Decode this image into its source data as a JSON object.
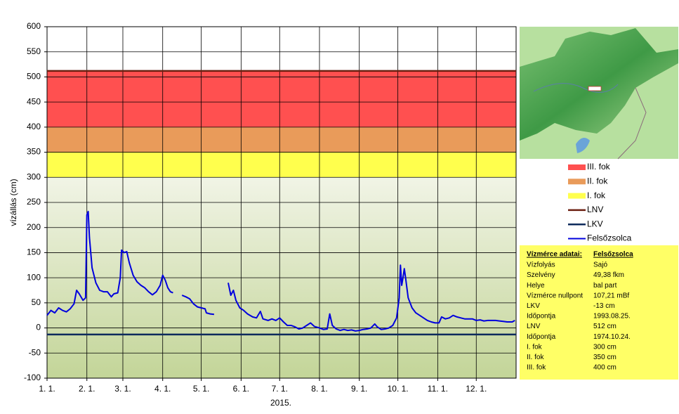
{
  "chart_data": {
    "type": "line",
    "y_label": "vízállás (cm)",
    "x_label": "2015.",
    "xlim": [
      0,
      365
    ],
    "xticks": [
      {
        "value": 0,
        "label": "1. 1."
      },
      {
        "value": 31,
        "label": "2. 1."
      },
      {
        "value": 59,
        "label": "3. 1."
      },
      {
        "value": 90,
        "label": "4. 1."
      },
      {
        "value": 120,
        "label": "5. 1."
      },
      {
        "value": 151,
        "label": "6. 1."
      },
      {
        "value": 181,
        "label": "7. 1."
      },
      {
        "value": 212,
        "label": "8. 1."
      },
      {
        "value": 243,
        "label": "9. 1."
      },
      {
        "value": 273,
        "label": "10. 1."
      },
      {
        "value": 304,
        "label": "11. 1."
      },
      {
        "value": 334,
        "label": "12. 1."
      }
    ],
    "ylim": [
      -100,
      600
    ],
    "yticks": [
      -100,
      -50,
      0,
      50,
      100,
      150,
      200,
      250,
      300,
      350,
      400,
      450,
      500,
      550,
      600
    ],
    "grid": true,
    "bands": [
      {
        "name": "III. fok",
        "range": [
          400,
          512
        ],
        "color": "#ff5050"
      },
      {
        "name": "II. fok",
        "range": [
          350,
          400
        ],
        "color": "#e99b5a"
      },
      {
        "name": "I. fok",
        "range": [
          300,
          350
        ],
        "color": "#ffff4d"
      }
    ],
    "levels": [
      {
        "name": "LNV",
        "value": 512,
        "color": "#6b1f10"
      },
      {
        "name": "LKV",
        "value": -13,
        "color": "#0d2a5c"
      }
    ],
    "x": [
      0,
      3,
      6,
      9,
      12,
      15,
      18,
      21,
      23,
      25,
      28,
      30,
      31,
      32,
      33,
      35,
      38,
      41,
      44,
      47,
      50,
      52,
      55,
      57,
      58,
      60,
      62,
      64,
      67,
      70,
      73,
      76,
      79,
      82,
      85,
      88,
      90,
      92,
      94,
      96,
      98,
      99,
      105,
      108,
      111,
      114,
      117,
      120,
      123,
      124,
      127,
      130,
      131,
      141,
      143,
      145,
      147,
      150,
      153,
      156,
      160,
      163,
      166,
      168,
      172,
      175,
      178,
      181,
      184,
      187,
      190,
      193,
      196,
      199,
      202,
      205,
      208,
      212,
      215,
      218,
      220,
      222,
      225,
      228,
      231,
      234,
      237,
      240,
      243,
      246,
      249,
      252,
      255,
      257,
      260,
      263,
      266,
      269,
      272,
      274,
      275,
      276,
      277,
      278,
      279,
      281,
      284,
      287,
      290,
      293,
      296,
      299,
      302,
      305,
      307,
      310,
      313,
      316,
      319,
      322,
      325,
      328,
      331,
      334,
      337,
      340,
      343,
      346,
      349,
      352,
      355,
      358,
      362,
      364
    ],
    "series": [
      {
        "name": "Felsőzsolca",
        "color": "#0000dd",
        "values": [
          25,
          35,
          30,
          40,
          35,
          32,
          38,
          48,
          75,
          68,
          55,
          60,
          225,
          232,
          180,
          120,
          90,
          75,
          72,
          72,
          62,
          68,
          70,
          100,
          155,
          150,
          152,
          130,
          105,
          92,
          85,
          80,
          72,
          66,
          72,
          85,
          105,
          95,
          80,
          72,
          70,
          null,
          65,
          62,
          58,
          48,
          42,
          40,
          38,
          30,
          28,
          27,
          null,
          90,
          65,
          75,
          55,
          40,
          35,
          28,
          22,
          20,
          33,
          18,
          15,
          18,
          15,
          20,
          12,
          5,
          5,
          2,
          -2,
          0,
          5,
          10,
          3,
          0,
          -3,
          -2,
          28,
          5,
          -2,
          -5,
          -3,
          -5,
          -4,
          -6,
          -5,
          -3,
          -2,
          0,
          8,
          2,
          -3,
          -2,
          0,
          5,
          20,
          60,
          125,
          85,
          100,
          118,
          100,
          60,
          40,
          30,
          25,
          20,
          15,
          12,
          10,
          10,
          22,
          18,
          20,
          25,
          22,
          20,
          18,
          18,
          18,
          15,
          16,
          14,
          15,
          15,
          15,
          14,
          13,
          12,
          12,
          15
        ]
      }
    ],
    "info": {
      "header": [
        "Vízmérce adatai:",
        "Felsőzsolca"
      ],
      "rows": [
        [
          "Vízfolyás",
          "Sajó"
        ],
        [
          "Szelvény",
          "49,38 fkm"
        ],
        [
          "Helye",
          "bal part"
        ],
        [
          "Vízmérce nullpont",
          "107,21 mBf"
        ],
        [
          "LKV",
          "-13 cm"
        ],
        [
          "Időpontja",
          "1993.08.25."
        ],
        [
          "LNV",
          "512 cm"
        ],
        [
          "Időpontja",
          "1974.10.24."
        ],
        [
          "I. fok",
          "300 cm"
        ],
        [
          "II. fok",
          "350 cm"
        ],
        [
          "III. fok",
          "400 cm"
        ]
      ]
    }
  }
}
